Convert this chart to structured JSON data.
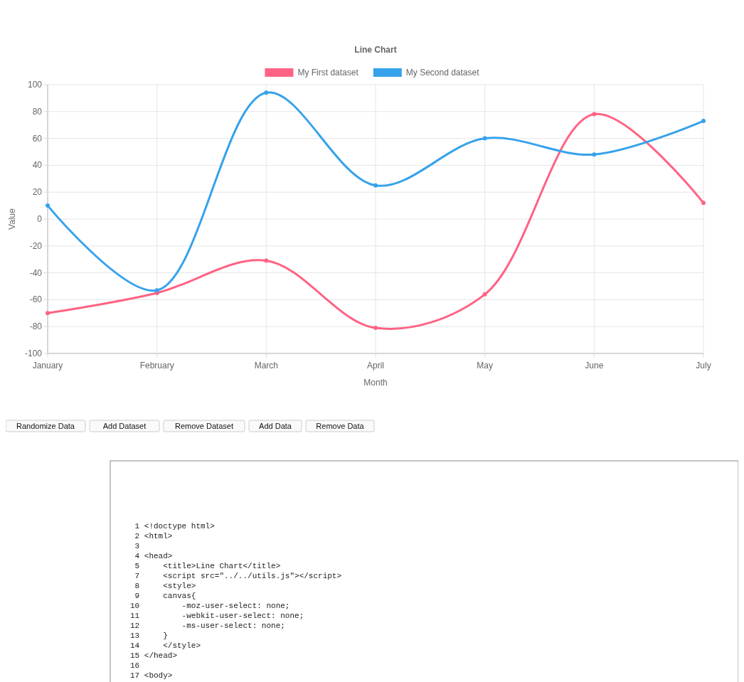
{
  "chart_data": {
    "type": "line",
    "title": "Line Chart",
    "xlabel": "Month",
    "ylabel": "Value",
    "categories": [
      "January",
      "February",
      "March",
      "April",
      "May",
      "June",
      "July"
    ],
    "series": [
      {
        "name": "My First dataset",
        "color": "#ff6384",
        "values": [
          -70,
          -55,
          -31,
          -81,
          -56,
          78,
          12
        ]
      },
      {
        "name": "My Second dataset",
        "color": "#36a2eb",
        "values": [
          10,
          -53,
          94,
          25,
          60,
          48,
          73
        ]
      }
    ],
    "ylim": [
      -100,
      100
    ],
    "yticks": [
      -100,
      -80,
      -60,
      -40,
      -20,
      0,
      20,
      40,
      60,
      80,
      100
    ],
    "grid": true,
    "legend": "top",
    "marker": "circle",
    "line_style": "solid",
    "annotations": [
      "Randomize Data",
      "Add Dataset",
      "Remove Dataset",
      "Add Data",
      "Remove Data",
      " 1 <!doctype html>",
      " 2 <html>",
      " 3",
      " 4 <head>",
      " 5     <title>Line Chart</title>",
      " 7     <script src=\"../../utils.js\"></script>",
      " 8     <style>",
      " 9     canvas{",
      "10         -moz-user-select: none;",
      "11         -webkit-user-select: none;",
      "12         -ms-user-select: none;",
      "13     }",
      "14     </style>",
      "15 </head>",
      "16",
      "17 <body>"
    ]
  }
}
